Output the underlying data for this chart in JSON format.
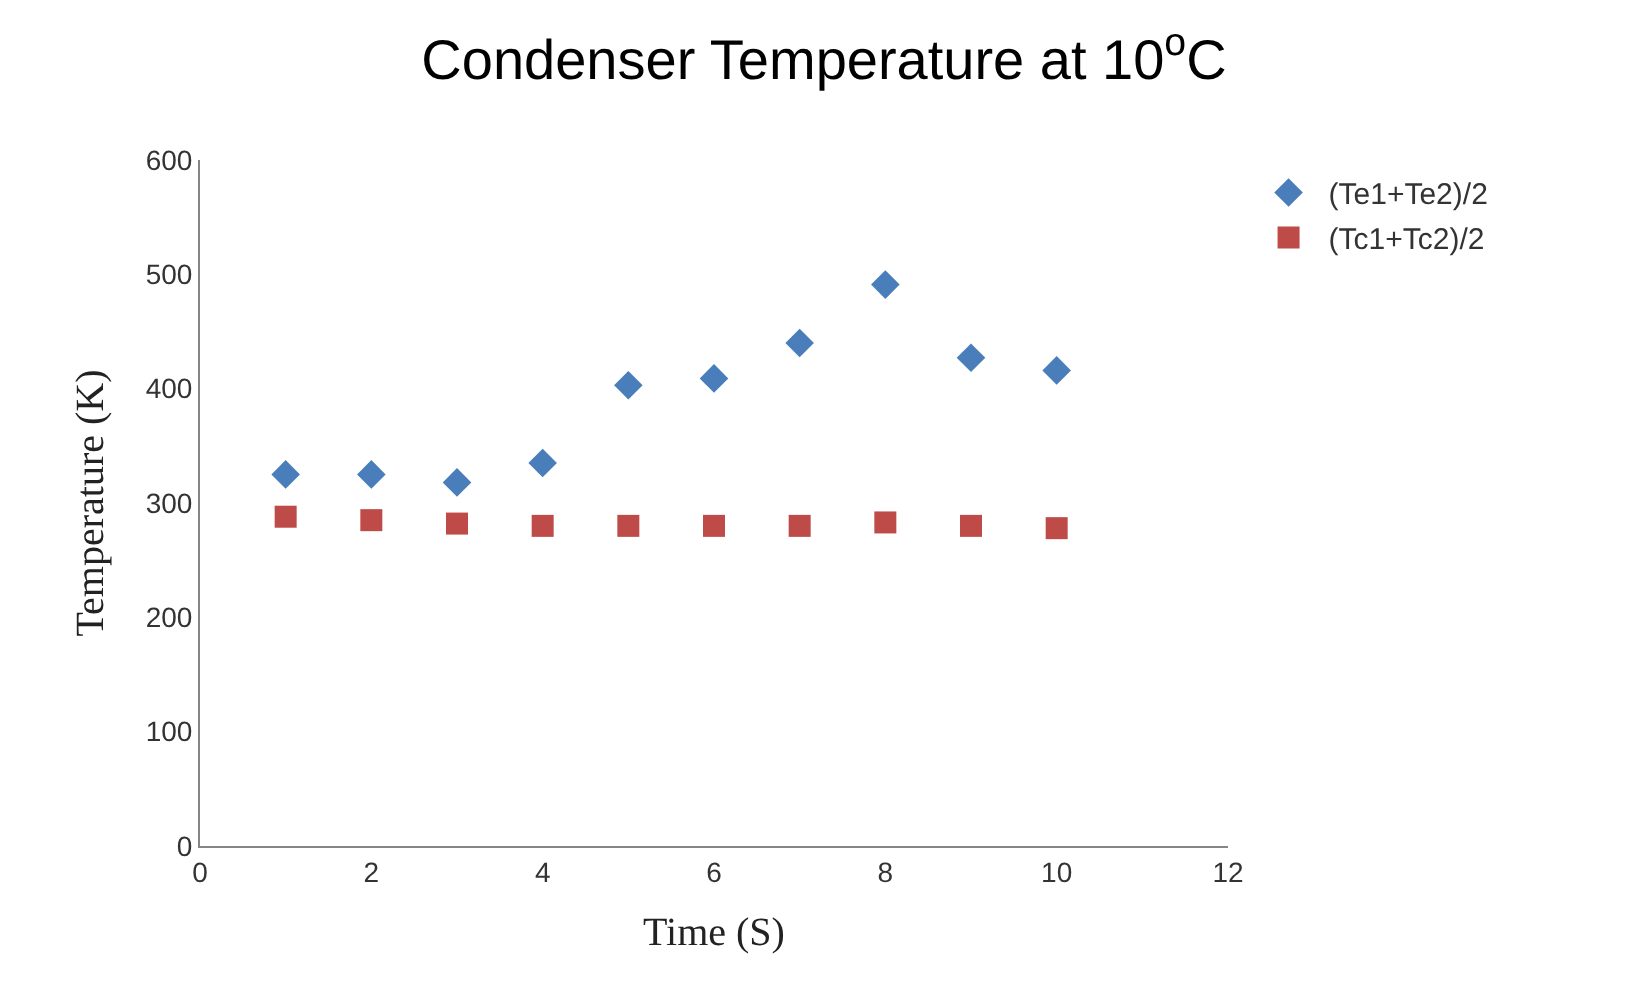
{
  "chart_data": {
    "type": "scatter",
    "title": "Condenser Temperature at 10$^{o}$C",
    "xlabel": "Time (S)",
    "ylabel": "Temperature (K)",
    "x": [
      1,
      2,
      3,
      4,
      5,
      6,
      7,
      8,
      9,
      10
    ],
    "series": [
      {
        "name": "(Te1+Te2)/2",
        "color": "#4a7ebb",
        "marker": "diamond",
        "values": [
          325,
          325,
          318,
          335,
          403,
          409,
          440,
          491,
          427,
          416
        ]
      },
      {
        "name": "(Tc1+Tc2)/2",
        "color": "#be4b48",
        "marker": "square",
        "values": [
          288,
          285,
          282,
          280,
          280,
          280,
          280,
          283,
          280,
          278
        ]
      }
    ],
    "xlim": [
      0,
      12
    ],
    "xticks": [
      0,
      2,
      4,
      6,
      8,
      10,
      12
    ],
    "ylim": [
      0,
      600
    ],
    "yticks": [
      0,
      100,
      200,
      300,
      400,
      500,
      600
    ],
    "legend": "top right"
  }
}
